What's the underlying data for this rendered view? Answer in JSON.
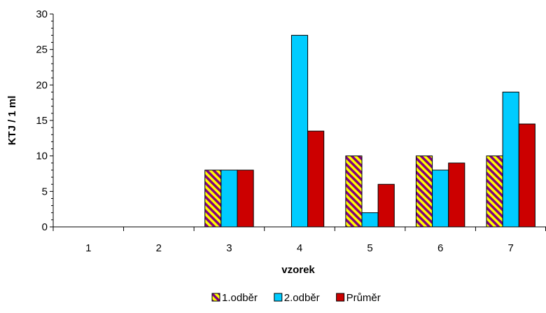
{
  "chart_data": {
    "type": "bar",
    "categories": [
      "1",
      "2",
      "3",
      "4",
      "5",
      "6",
      "7"
    ],
    "series": [
      {
        "name": "1.odběr",
        "values": [
          0,
          0,
          8,
          0,
          10,
          10,
          10
        ],
        "color": "#FFFF00",
        "pattern_color": "#800080"
      },
      {
        "name": "2.odběr",
        "values": [
          0,
          0,
          8,
          27,
          2,
          8,
          19
        ],
        "color": "#00CCFF"
      },
      {
        "name": "Průměr",
        "values": [
          0,
          0,
          8,
          13.5,
          6,
          9,
          14.5
        ],
        "color": "#CC0000"
      }
    ],
    "xlabel": "vzorek",
    "ylabel": "KTJ / 1 ml",
    "ylim": [
      0,
      30
    ],
    "yticks": [
      0,
      5,
      10,
      15,
      20,
      25,
      30
    ],
    "grid": false,
    "legend_position": "bottom"
  }
}
